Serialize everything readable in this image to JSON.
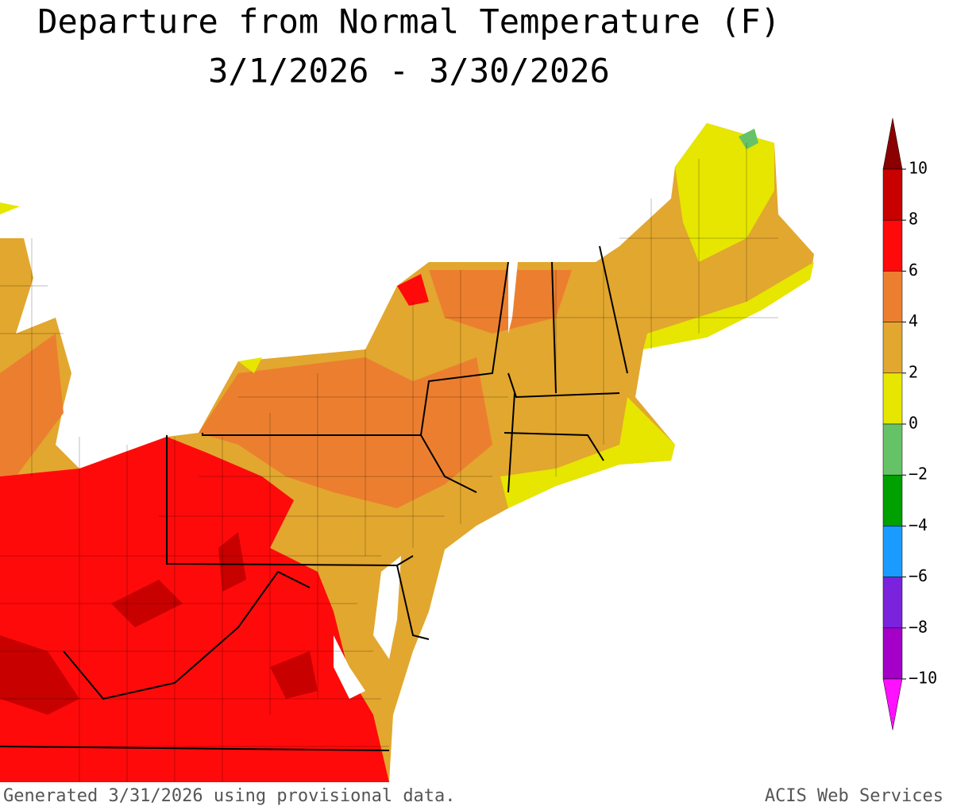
{
  "title": {
    "line1": "Departure from Normal Temperature (F)",
    "line2": "3/1/2026 - 3/30/2026"
  },
  "legend": {
    "ticks": [
      10,
      8,
      6,
      4,
      2,
      0,
      {
        "value": -2,
        "label": "−2"
      },
      {
        "value": -4,
        "label": "−4"
      },
      {
        "value": -6,
        "label": "−6"
      },
      {
        "value": -8,
        "label": "−8"
      },
      {
        "value": -10,
        "label": "−10"
      }
    ],
    "colors": [
      "#8b0000",
      "#c80000",
      "#ff0a0a",
      "#ec7f2f",
      "#e2a72e",
      "#e6e600",
      "#66c266",
      "#00a000",
      "#1a9bff",
      "#7b22dd",
      "#a400c8",
      "#ff10ff"
    ]
  },
  "footer": {
    "left": "Generated 3/31/2026 using provisional data.",
    "right": "ACIS Web Services"
  }
}
